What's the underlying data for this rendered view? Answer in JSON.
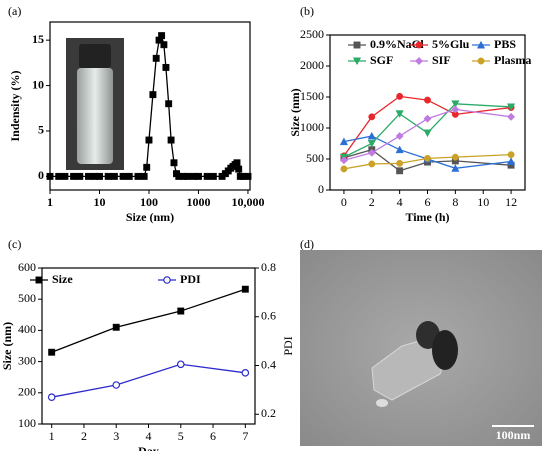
{
  "chart_data": [
    {
      "type": "line",
      "label": "(a)",
      "xlabel": "Size (nm)",
      "ylabel": "Indensity (%)",
      "xlog": true,
      "x": [
        1,
        1.5,
        2,
        3,
        4,
        6,
        8,
        10,
        15,
        20,
        30,
        40,
        60,
        80,
        90,
        100,
        120,
        140,
        160,
        180,
        200,
        220,
        250,
        280,
        320,
        360,
        400,
        500,
        600,
        800,
        1000,
        1500,
        2000,
        3000,
        3500,
        4000,
        4500,
        5000,
        5500,
        6000,
        6500,
        7000,
        8000,
        10000
      ],
      "series": [
        {
          "color": "#000000",
          "values": [
            0,
            0,
            0,
            0,
            0,
            0,
            0,
            0,
            0,
            0,
            0,
            0,
            0,
            0,
            1,
            4,
            9,
            13,
            15,
            15.5,
            14.5,
            12,
            8,
            4,
            1.5,
            0.3,
            0,
            0,
            0,
            0,
            0,
            0,
            0,
            0,
            0.3,
            0.6,
            0.9,
            1.1,
            1.3,
            1.5,
            0.8,
            0,
            0,
            0
          ]
        }
      ],
      "xlim": [
        1,
        11000
      ],
      "xticks": [
        1,
        10,
        100,
        1000,
        {
          "value": 10000,
          "label": "10,000"
        }
      ],
      "ylim": [
        -1.5,
        17
      ],
      "yticks": [
        0,
        5,
        10,
        15
      ]
    },
    {
      "type": "line",
      "label": "(b)",
      "xlabel": "Time (h)",
      "ylabel": "Size (nm)",
      "x": [
        0,
        2,
        4,
        6,
        8,
        12
      ],
      "series": [
        {
          "name": "0.9%NaCl",
          "color": "#555555",
          "values": [
            520,
            650,
            310,
            450,
            470,
            400
          ]
        },
        {
          "name": "5%Glu",
          "color": "#e8262b",
          "values": [
            550,
            1180,
            1510,
            1450,
            1220,
            1330
          ]
        },
        {
          "name": "PBS",
          "color": "#2b6fd6",
          "values": [
            780,
            870,
            650,
            500,
            350,
            460
          ]
        },
        {
          "name": "SGF",
          "color": "#2bab68",
          "values": [
            530,
            750,
            1230,
            920,
            1390,
            1340
          ]
        },
        {
          "name": "SIF",
          "color": "#c07be0",
          "values": [
            480,
            600,
            870,
            1150,
            1300,
            1180
          ]
        },
        {
          "name": "Plasma",
          "color": "#c9a227",
          "values": [
            340,
            420,
            430,
            510,
            530,
            570
          ]
        }
      ],
      "xlim": [
        -1,
        13
      ],
      "xticks": [
        0,
        2,
        4,
        6,
        8,
        10,
        12
      ],
      "ylim": [
        0,
        2500
      ],
      "yticks": [
        0,
        500,
        1000,
        1500,
        2000,
        2500
      ]
    },
    {
      "type": "line",
      "label": "(c)",
      "xlabel": "Day",
      "ylabel": "Size (nm)",
      "y2label": "PDI",
      "x": [
        1,
        3,
        5,
        7
      ],
      "series": [
        {
          "name": "Size",
          "color": "#000000",
          "values": [
            330,
            410,
            462,
            532
          ]
        },
        {
          "name": "PDI",
          "color": "#2b2bcc",
          "axis": "y2",
          "values": [
            0.27,
            0.32,
            0.405,
            0.37
          ]
        }
      ],
      "xlim": [
        0.7,
        7.3
      ],
      "xticks": [
        1,
        2,
        3,
        4,
        5,
        6,
        7
      ],
      "ylim": [
        100,
        600
      ],
      "yticks": [
        100,
        200,
        300,
        400,
        500,
        600
      ],
      "y2lim": [
        0.16,
        0.8
      ],
      "y2ticks": [
        0.2,
        0.4,
        0.6,
        0.8
      ]
    },
    {
      "type": "image",
      "label": "(d)",
      "scale_bar": "100nm"
    }
  ]
}
